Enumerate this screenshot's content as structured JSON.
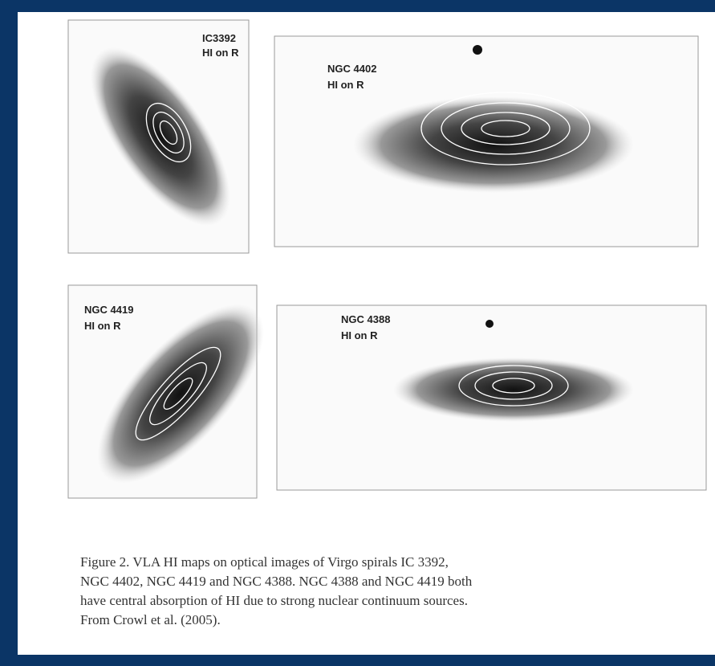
{
  "panels": [
    {
      "name": "IC3392",
      "label": "HI on R"
    },
    {
      "name": "NGC 4402",
      "label": "HI on R"
    },
    {
      "name": "NGC 4419",
      "label": "HI on R"
    },
    {
      "name": "NGC 4388",
      "label": "HI on R"
    }
  ],
  "caption": {
    "lines": [
      "Figure 2.    VLA HI maps on optical images of Virgo spirals IC 3392,",
      "NGC 4402, NGC 4419 and NGC 4388. NGC 4388 and NGC 4419 both",
      "have central absorption of HI due to strong nuclear continuum sources.",
      "From Crowl et al. (2005)."
    ]
  }
}
